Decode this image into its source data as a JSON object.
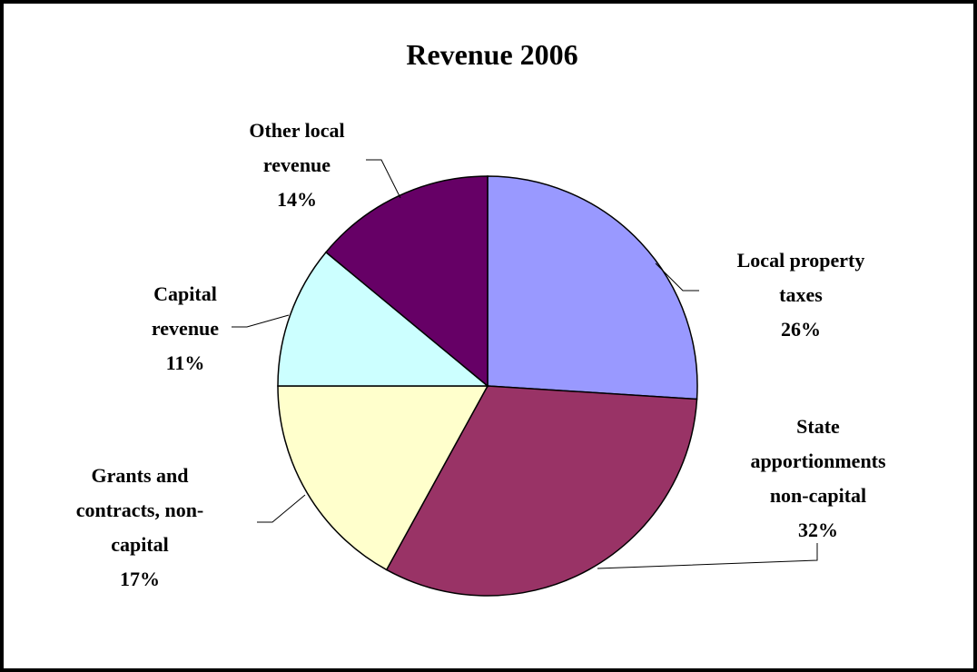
{
  "chart_data": {
    "type": "pie",
    "title": "Revenue 2006",
    "categories": [
      "Local property\ntaxes",
      "State\napportionments\nnon-capital",
      "Grants and\ncontracts, non-\ncapital",
      "Capital\nrevenue",
      "Other local\nrevenue"
    ],
    "values": [
      26,
      32,
      17,
      11,
      14
    ],
    "value_labels": [
      "26%",
      "32%",
      "17%",
      "11%",
      "14%"
    ],
    "colors": [
      "#9999ff",
      "#993366",
      "#ffffcc",
      "#ccffff",
      "#660066"
    ]
  }
}
